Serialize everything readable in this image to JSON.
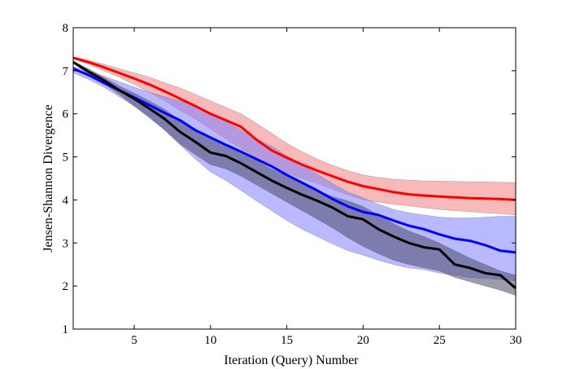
{
  "chart_data": {
    "type": "line",
    "title": "",
    "xlabel": "Iteration (Query) Number",
    "ylabel": "Jensen-Shannon Divergence",
    "xlim": [
      1,
      30
    ],
    "ylim": [
      1,
      8
    ],
    "xticks": [
      5,
      10,
      15,
      20,
      25,
      30
    ],
    "yticks": [
      1,
      2,
      3,
      4,
      5,
      6,
      7,
      8
    ],
    "grid": false,
    "legend": "none",
    "series": [
      {
        "color": "#ff0000",
        "band_color": "#f08080",
        "x": [
          1,
          2,
          3,
          4,
          5,
          6,
          7,
          8,
          9,
          10,
          11,
          12,
          13,
          14,
          15,
          16,
          17,
          18,
          19,
          20,
          21,
          22,
          23,
          24,
          25,
          26,
          27,
          28,
          29,
          30
        ],
        "y": [
          7.3,
          7.2,
          7.08,
          6.95,
          6.82,
          6.68,
          6.52,
          6.35,
          6.18,
          6.0,
          5.85,
          5.7,
          5.4,
          5.15,
          4.98,
          4.82,
          4.68,
          4.55,
          4.42,
          4.32,
          4.25,
          4.18,
          4.13,
          4.1,
          4.08,
          4.06,
          4.04,
          4.03,
          4.02,
          4.0
        ],
        "lower": [
          7.28,
          7.15,
          7.0,
          6.85,
          6.68,
          6.5,
          6.3,
          6.08,
          5.88,
          5.65,
          5.42,
          5.2,
          4.98,
          4.78,
          4.62,
          4.5,
          4.38,
          4.25,
          4.12,
          4.0,
          3.95,
          3.9,
          3.86,
          3.82,
          3.78,
          3.75,
          3.73,
          3.7,
          3.68,
          3.65
        ],
        "upper": [
          7.32,
          7.25,
          7.15,
          7.05,
          6.95,
          6.85,
          6.72,
          6.6,
          6.45,
          6.3,
          6.15,
          6.0,
          5.78,
          5.55,
          5.32,
          5.12,
          4.95,
          4.8,
          4.68,
          4.58,
          4.52,
          4.48,
          4.46,
          4.44,
          4.44,
          4.43,
          4.42,
          4.42,
          4.41,
          4.4
        ]
      },
      {
        "color": "#0000ff",
        "band_color": "#8080ff",
        "x": [
          1,
          2,
          3,
          4,
          5,
          6,
          7,
          8,
          9,
          10,
          11,
          12,
          13,
          14,
          15,
          16,
          17,
          18,
          19,
          20,
          21,
          22,
          23,
          24,
          25,
          26,
          27,
          28,
          29,
          30
        ],
        "y": [
          7.05,
          6.9,
          6.72,
          6.55,
          6.38,
          6.2,
          6.02,
          5.85,
          5.62,
          5.45,
          5.28,
          5.12,
          4.95,
          4.78,
          4.58,
          4.4,
          4.22,
          4.02,
          3.85,
          3.72,
          3.65,
          3.52,
          3.4,
          3.32,
          3.2,
          3.1,
          3.05,
          2.95,
          2.82,
          2.78
        ],
        "lower": [
          6.95,
          6.8,
          6.62,
          6.4,
          6.18,
          5.9,
          5.62,
          5.28,
          4.95,
          4.65,
          4.45,
          4.22,
          3.98,
          3.75,
          3.52,
          3.32,
          3.15,
          2.98,
          2.82,
          2.72,
          2.6,
          2.5,
          2.42,
          2.38,
          2.3,
          2.25,
          2.2,
          2.18,
          2.15,
          2.12
        ],
        "upper": [
          7.1,
          7.0,
          6.88,
          6.75,
          6.62,
          6.5,
          6.4,
          6.3,
          6.18,
          6.0,
          5.82,
          5.62,
          5.42,
          5.25,
          5.02,
          4.82,
          4.6,
          4.38,
          4.18,
          4.05,
          3.9,
          3.78,
          3.7,
          3.65,
          3.6,
          3.58,
          3.58,
          3.6,
          3.62,
          3.62
        ]
      },
      {
        "color": "#000000",
        "band_color": "#4a4a6a",
        "x": [
          1,
          2,
          3,
          4,
          5,
          6,
          7,
          8,
          9,
          10,
          11,
          12,
          13,
          14,
          15,
          16,
          17,
          18,
          19,
          20,
          21,
          22,
          23,
          24,
          25,
          26,
          27,
          28,
          29,
          30
        ],
        "y": [
          7.2,
          6.98,
          6.78,
          6.55,
          6.35,
          6.12,
          5.88,
          5.58,
          5.35,
          5.1,
          5.02,
          4.85,
          4.65,
          4.45,
          4.28,
          4.12,
          3.98,
          3.82,
          3.62,
          3.55,
          3.32,
          3.15,
          3.0,
          2.9,
          2.85,
          2.5,
          2.42,
          2.3,
          2.25,
          1.95
        ],
        "lower": [
          7.18,
          6.92,
          6.7,
          6.45,
          6.18,
          5.92,
          5.62,
          5.3,
          5.05,
          4.82,
          4.72,
          4.55,
          4.35,
          4.15,
          3.95,
          3.75,
          3.55,
          3.35,
          3.12,
          2.92,
          2.75,
          2.6,
          2.5,
          2.42,
          2.35,
          2.2,
          2.1,
          2.0,
          1.9,
          1.78
        ],
        "upper": [
          7.22,
          7.05,
          6.85,
          6.65,
          6.48,
          6.3,
          6.1,
          5.85,
          5.65,
          5.42,
          5.3,
          5.12,
          4.92,
          4.72,
          4.55,
          4.38,
          4.22,
          4.08,
          3.98,
          3.85,
          3.65,
          3.45,
          3.28,
          3.15,
          3.0,
          2.82,
          2.65,
          2.5,
          2.35,
          2.25
        ]
      }
    ]
  }
}
